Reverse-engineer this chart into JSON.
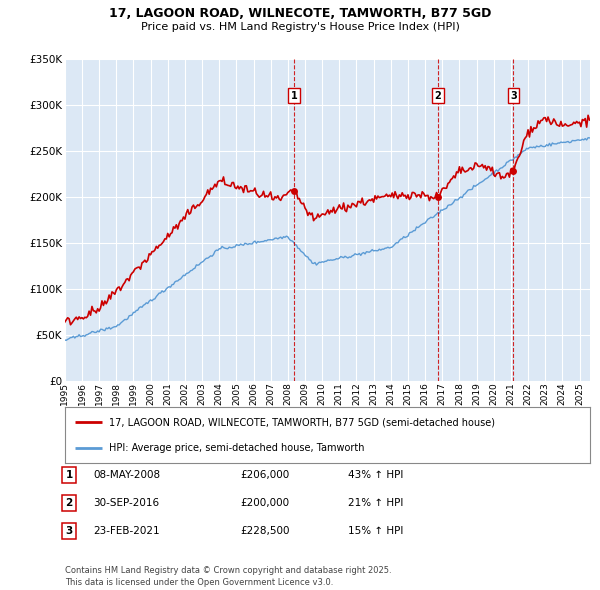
{
  "title_line1": "17, LAGOON ROAD, WILNECOTE, TAMWORTH, B77 5GD",
  "title_line2": "Price paid vs. HM Land Registry's House Price Index (HPI)",
  "background_color": "#ffffff",
  "plot_bg_color": "#dce8f5",
  "grid_color": "#ffffff",
  "red_line_color": "#cc0000",
  "blue_line_color": "#5b9bd5",
  "fill_color": "#dce8f5",
  "sale_line_color": "#cc0000",
  "ylim": [
    0,
    350000
  ],
  "yticks": [
    0,
    50000,
    100000,
    150000,
    200000,
    250000,
    300000,
    350000
  ],
  "ytick_labels": [
    "£0",
    "£50K",
    "£100K",
    "£150K",
    "£200K",
    "£250K",
    "£300K",
    "£350K"
  ],
  "sales": [
    {
      "date_num": 2008.36,
      "price": 206000,
      "label": "1"
    },
    {
      "date_num": 2016.75,
      "price": 200000,
      "label": "2"
    },
    {
      "date_num": 2021.15,
      "price": 228500,
      "label": "3"
    }
  ],
  "sale_dates_display": [
    "08-MAY-2008",
    "30-SEP-2016",
    "23-FEB-2021"
  ],
  "sale_prices_display": [
    "£206,000",
    "£200,000",
    "£228,500"
  ],
  "sale_hpi_display": [
    "43% ↑ HPI",
    "21% ↑ HPI",
    "15% ↑ HPI"
  ],
  "legend_red_label": "17, LAGOON ROAD, WILNECOTE, TAMWORTH, B77 5GD (semi-detached house)",
  "legend_blue_label": "HPI: Average price, semi-detached house, Tamworth",
  "footer": "Contains HM Land Registry data © Crown copyright and database right 2025.\nThis data is licensed under the Open Government Licence v3.0."
}
